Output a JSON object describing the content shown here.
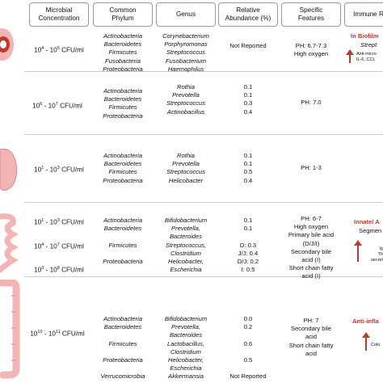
{
  "headers": [
    "Microbial\nConcentration",
    "Common\nPhylum",
    "Genus",
    "Relative\nAbundance (%)",
    "Specific\nFeatures",
    "Immune R"
  ],
  "rows": [
    {
      "conc_base": "10",
      "conc_exp1": "4",
      "conc_mid": " - 10",
      "conc_exp2": "5",
      "conc_unit": " CFU/ml",
      "phylum": [
        "Actinobacteria",
        "Bacteroidetes",
        "Firmicutes",
        "Fusobacteria",
        "Proteobacteria"
      ],
      "genus": [
        "Corynebacterium",
        "Porphyromonas",
        "Streptococcus",
        "Fusobacterium",
        "Haemophilus"
      ],
      "abundance": [
        "Not Reported"
      ],
      "features": [
        "PH: 6.7-7.3",
        "High oxygen"
      ],
      "immune": [
        "In Biofilm",
        "Strept",
        "Anti-micro",
        "IL-6, CCL"
      ]
    },
    {
      "conc_base": "10",
      "conc_exp1": "6",
      "conc_mid": " - 10",
      "conc_exp2": "7",
      "conc_unit": "  CFU/ml",
      "phylum": [
        "Actinobacteria",
        "Bacteroidetes",
        "Firmicutes",
        "Proteobacteria"
      ],
      "genus": [
        "Rothia",
        "Prevotella",
        "Streptococcus",
        "Actinobacillus"
      ],
      "abundance": [
        "0.1",
        "0.1",
        "0.3",
        "0.4"
      ],
      "features": [
        "PH: 7.0"
      ]
    },
    {
      "conc_base": "10",
      "conc_exp1": "1",
      "conc_mid": " - 10",
      "conc_exp2": "3",
      "conc_unit": " CFU/ml",
      "phylum": [
        "Actinobacteria",
        "Bacteroidetes",
        "Firmicutes",
        "Proteobacteria"
      ],
      "genus": [
        "Rothia",
        "Prevotella",
        "Streptococcus",
        "Helicobacter"
      ],
      "abundance": [
        "0.1",
        "0.1",
        "0.5",
        "0.4"
      ],
      "features": [
        "PH: 1-3"
      ]
    },
    {
      "conc_a": {
        "base": "10",
        "e1": "1",
        "mid": " - 10",
        "e2": "3",
        "unit": " CFU/ml"
      },
      "conc_b": {
        "base": "10",
        "e1": "4",
        "mid": " - 10",
        "e2": "7",
        "unit": " CFU/ml"
      },
      "conc_c": {
        "base": "10",
        "e1": "3",
        "mid": " - 10",
        "e2": "8",
        "unit": " CFU/ml"
      },
      "phylum": [
        "Actinobacteria",
        "Bacteroidetes",
        "",
        "Firmicutes",
        "",
        "Proteobacteria"
      ],
      "genus": [
        "Bifidobacterium",
        "Prevotella,",
        "Bacteroides",
        "Streptococcus,",
        "Clostridium",
        "Helicobacter,",
        "Escherichia"
      ],
      "abundance": [
        "0.1",
        "0.1",
        "",
        "D: 0.3",
        "J/J: 0.4",
        "D/J: 0.2",
        "I: 0.5"
      ],
      "features": [
        "PH: 6-7",
        "High oxygen",
        "Primary bile acid",
        "(D/J/I)",
        "Secondary bile",
        "acid (I)",
        "Short chain fatty",
        "acid (I)"
      ],
      "immune": [
        "Innate/ A",
        "Segmen",
        "Ig",
        "Th",
        "secret"
      ]
    },
    {
      "conc_base": "10",
      "conc_exp1": "10",
      "conc_mid": " - 10",
      "conc_exp2": "11",
      "conc_unit": "  CFU/ml",
      "phylum": [
        "Actinobacteria",
        "Bacteroidetes",
        "",
        "Firmicutes",
        "",
        "Proteobacteria",
        "",
        "Verrucomicrobia"
      ],
      "genus": [
        "Bifidobacterium",
        "Prevotella,",
        "Bacteroides",
        "Lactobacillus,",
        "Clostridium",
        "Helicobacter,",
        "Escherichia",
        "Akkermansia"
      ],
      "abundance": [
        "0.0",
        "0.2",
        "",
        "0.6",
        "",
        "0.5",
        "",
        "Not Reported"
      ],
      "features": [
        "PH: 7",
        "Secondary bile",
        "acid",
        "Short chain fatty",
        "acid"
      ],
      "immune": [
        "Anti-infla",
        "Colo"
      ]
    }
  ]
}
